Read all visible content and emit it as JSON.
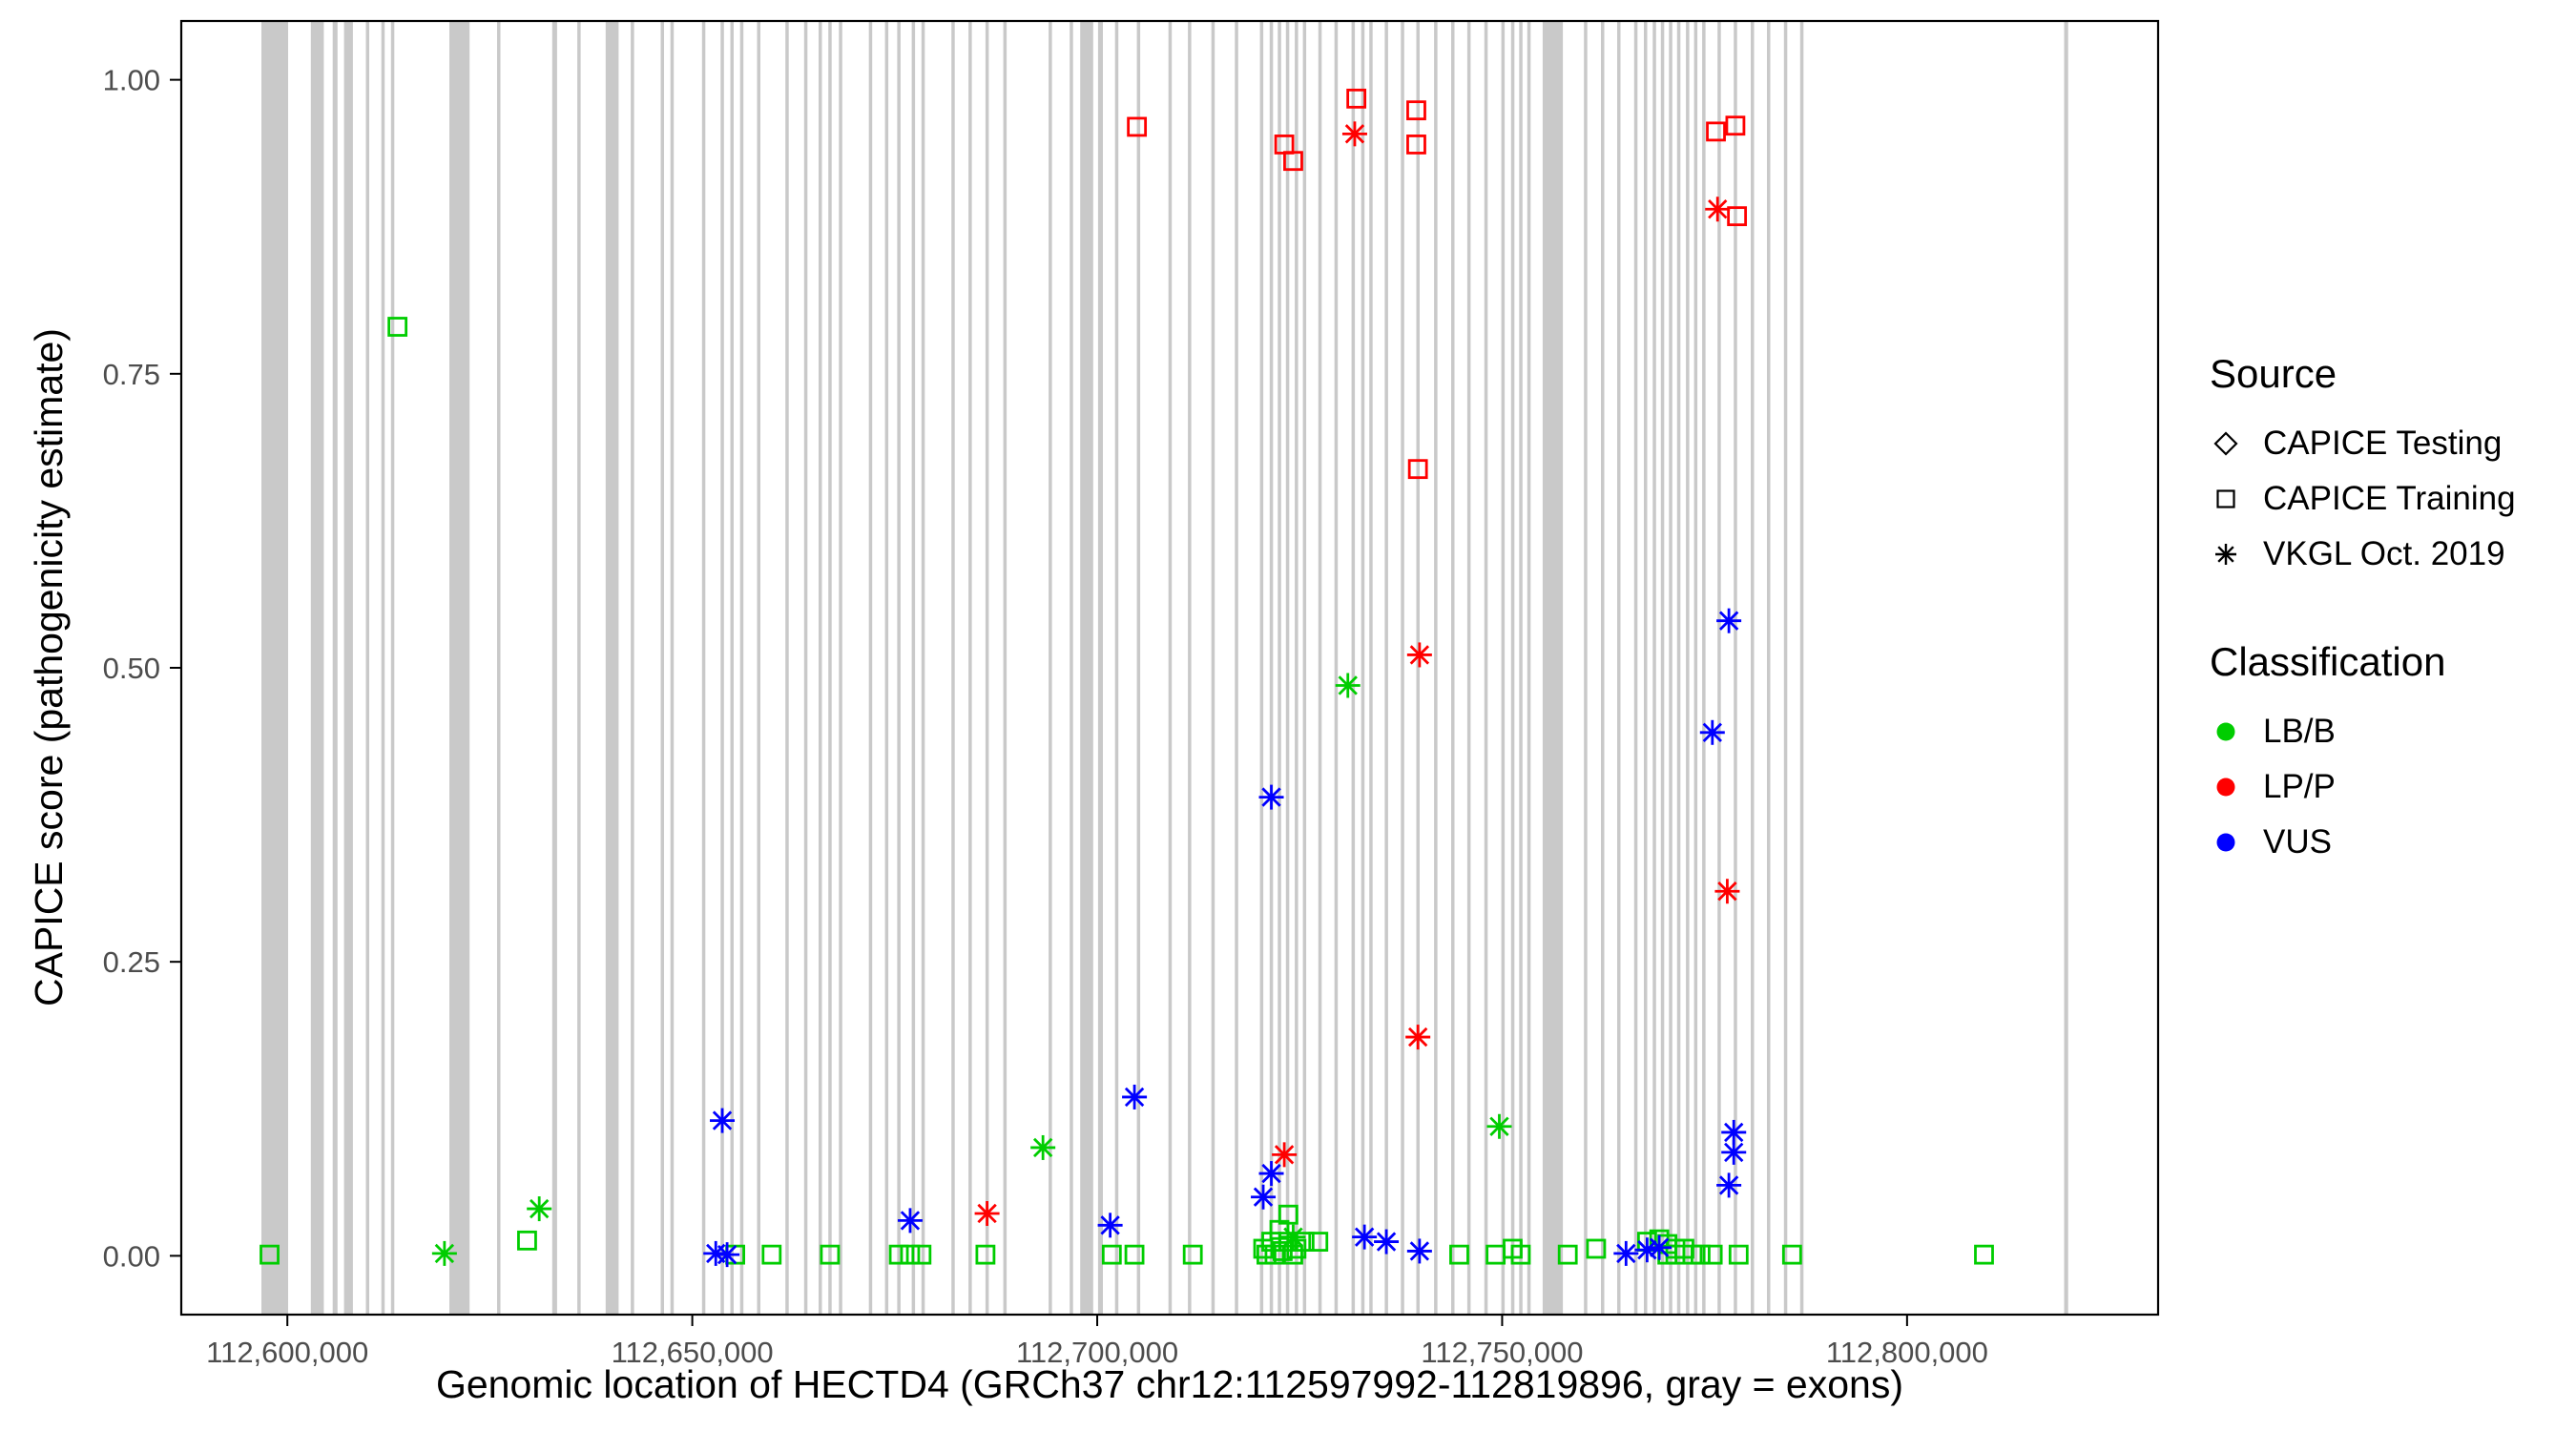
{
  "chart_data": {
    "type": "scatter",
    "title": "",
    "xlabel": "Genomic location of HECTD4 (GRCh37 chr12:112597992-112819896, gray = exons)",
    "ylabel": "CAPICE score (pathogenicity estimate)",
    "xlim": [
      112586900,
      112831000
    ],
    "ylim": [
      -0.05,
      1.05
    ],
    "grid": false,
    "legend_position": "right",
    "x_ticks": [
      {
        "value": 112600000,
        "label": "112,600,000"
      },
      {
        "value": 112650000,
        "label": "112,650,000"
      },
      {
        "value": 112700000,
        "label": "112,700,000"
      },
      {
        "value": 112750000,
        "label": "112,750,000"
      },
      {
        "value": 112800000,
        "label": "112,800,000"
      }
    ],
    "y_ticks": [
      {
        "value": 0.0,
        "label": "0.00"
      },
      {
        "value": 0.25,
        "label": "0.25"
      },
      {
        "value": 0.5,
        "label": "0.50"
      },
      {
        "value": 0.75,
        "label": "0.75"
      },
      {
        "value": 1.0,
        "label": "1.00"
      }
    ],
    "colors": {
      "exon": "#C9C9C9",
      "lbb": "#00CD00",
      "lpp": "#FF0000",
      "vus": "#0000FF",
      "border": "#000000"
    },
    "exons": [
      [
        112596800,
        112600100
      ],
      [
        112602900,
        112604500
      ],
      [
        112605600,
        112606200
      ],
      [
        112607000,
        112608100
      ],
      [
        112609700,
        112610100
      ],
      [
        112611600,
        112612000
      ],
      [
        112612800,
        112613200
      ],
      [
        112620000,
        112622500
      ],
      [
        112625900,
        112626300
      ],
      [
        112632700,
        112633300
      ],
      [
        112635800,
        112636200
      ],
      [
        112639300,
        112640900
      ],
      [
        112642400,
        112642800
      ],
      [
        112646100,
        112646500
      ],
      [
        112647300,
        112647700
      ],
      [
        112651200,
        112651600
      ],
      [
        112653500,
        112653900
      ],
      [
        112654700,
        112655100
      ],
      [
        112655900,
        112656300
      ],
      [
        112658000,
        112658400
      ],
      [
        112661500,
        112661900
      ],
      [
        112663800,
        112664200
      ],
      [
        112665600,
        112666000
      ],
      [
        112666800,
        112667200
      ],
      [
        112668100,
        112668500
      ],
      [
        112671800,
        112672200
      ],
      [
        112673800,
        112674200
      ],
      [
        112675300,
        112675700
      ],
      [
        112677100,
        112677500
      ],
      [
        112678300,
        112678700
      ],
      [
        112682000,
        112682400
      ],
      [
        112684100,
        112684500
      ],
      [
        112686200,
        112686600
      ],
      [
        112688400,
        112688800
      ],
      [
        112694000,
        112694400
      ],
      [
        112696600,
        112697000
      ],
      [
        112697900,
        112699500
      ],
      [
        112700100,
        112700700
      ],
      [
        112702200,
        112702600
      ],
      [
        112704900,
        112705300
      ],
      [
        112708800,
        112709200
      ],
      [
        112711200,
        112711600
      ],
      [
        112714100,
        112714500
      ],
      [
        112717000,
        112717400
      ],
      [
        112720100,
        112720500
      ],
      [
        112721300,
        112721700
      ],
      [
        112722300,
        112722700
      ],
      [
        112723300,
        112723700
      ],
      [
        112724400,
        112724800
      ],
      [
        112725400,
        112725800
      ],
      [
        112727300,
        112727700
      ],
      [
        112729300,
        112729700
      ],
      [
        112731400,
        112731800
      ],
      [
        112732600,
        112733000
      ],
      [
        112733600,
        112734000
      ],
      [
        112735500,
        112735900
      ],
      [
        112737500,
        112737900
      ],
      [
        112739400,
        112739800
      ],
      [
        112741600,
        112742000
      ],
      [
        112743700,
        112744100
      ],
      [
        112745700,
        112746100
      ],
      [
        112747800,
        112748200
      ],
      [
        112749900,
        112750300
      ],
      [
        112751100,
        112751500
      ],
      [
        112752100,
        112752500
      ],
      [
        112753100,
        112753500
      ],
      [
        112755000,
        112757500
      ],
      [
        112760100,
        112760500
      ],
      [
        112762200,
        112762600
      ],
      [
        112764200,
        112764600
      ],
      [
        112766300,
        112766700
      ],
      [
        112767500,
        112767900
      ],
      [
        112768600,
        112769000
      ],
      [
        112769600,
        112770000
      ],
      [
        112770600,
        112771000
      ],
      [
        112771600,
        112772000
      ],
      [
        112772700,
        112773100
      ],
      [
        112773700,
        112774100
      ],
      [
        112774700,
        112775100
      ],
      [
        112776600,
        112777000
      ],
      [
        112778600,
        112779000
      ],
      [
        112780700,
        112781100
      ],
      [
        112782700,
        112783100
      ],
      [
        112784800,
        112785200
      ],
      [
        112786800,
        112787200
      ],
      [
        112819400,
        112819896
      ]
    ],
    "series": [
      {
        "name": "CAPICE Training / LB/B",
        "source": "CAPICE Training",
        "classification": "LB/B",
        "shape": "square",
        "color": "#00CD00",
        "points": [
          [
            112597800,
            0.001
          ],
          [
            112613600,
            0.79
          ],
          [
            112629600,
            0.013
          ],
          [
            112655300,
            0.001
          ],
          [
            112659800,
            0.001
          ],
          [
            112667000,
            0.001
          ],
          [
            112675500,
            0.001
          ],
          [
            112676900,
            0.001
          ],
          [
            112678300,
            0.001
          ],
          [
            112686200,
            0.001
          ],
          [
            112701800,
            0.001
          ],
          [
            112704600,
            0.001
          ],
          [
            112711800,
            0.001
          ],
          [
            112720500,
            0.006
          ],
          [
            112720900,
            0.001
          ],
          [
            112721500,
            0.012
          ],
          [
            112721900,
            0.001
          ],
          [
            112722500,
            0.022
          ],
          [
            112722900,
            0.004
          ],
          [
            112723600,
            0.035
          ],
          [
            112723600,
            0.012
          ],
          [
            112724200,
            0.001
          ],
          [
            112724600,
            0.006
          ],
          [
            112725600,
            0.012
          ],
          [
            112727300,
            0.012
          ],
          [
            112744700,
            0.001
          ],
          [
            112749200,
            0.001
          ],
          [
            112751300,
            0.006
          ],
          [
            112752300,
            0.001
          ],
          [
            112758100,
            0.001
          ],
          [
            112761600,
            0.006
          ],
          [
            112767900,
            0.012
          ],
          [
            112769400,
            0.014
          ],
          [
            112770400,
            0.01
          ],
          [
            112770400,
            0.001
          ],
          [
            112771400,
            0.006
          ],
          [
            112771400,
            0.001
          ],
          [
            112772500,
            0.006
          ],
          [
            112773500,
            0.001
          ],
          [
            112774500,
            0.001
          ],
          [
            112776000,
            0.001
          ],
          [
            112779200,
            0.001
          ],
          [
            112785800,
            0.001
          ],
          [
            112809500,
            0.001
          ]
        ]
      },
      {
        "name": "CAPICE Training / LP/P",
        "source": "CAPICE Training",
        "classification": "LP/P",
        "shape": "square",
        "color": "#FF0000",
        "points": [
          [
            112704900,
            0.96
          ],
          [
            112723100,
            0.945
          ],
          [
            112724200,
            0.931
          ],
          [
            112732000,
            0.984
          ],
          [
            112739400,
            0.974
          ],
          [
            112739400,
            0.945
          ],
          [
            112739600,
            0.669
          ],
          [
            112776400,
            0.956
          ],
          [
            112778800,
            0.961
          ],
          [
            112779000,
            0.884
          ]
        ]
      },
      {
        "name": "CAPICE Testing",
        "source": "CAPICE Testing",
        "classification": "",
        "shape": "diamond",
        "color": "#000000",
        "points": []
      },
      {
        "name": "VKGL Oct. 2019 / LB/B",
        "source": "VKGL Oct. 2019",
        "classification": "LB/B",
        "shape": "asterisk",
        "color": "#00CD00",
        "points": [
          [
            112619400,
            0.002
          ],
          [
            112631100,
            0.04
          ],
          [
            112693300,
            0.092
          ],
          [
            112724200,
            0.016
          ],
          [
            112730950,
            0.485
          ],
          [
            112749650,
            0.11
          ]
        ]
      },
      {
        "name": "VKGL Oct. 2019 / LP/P",
        "source": "VKGL Oct. 2019",
        "classification": "LP/P",
        "shape": "asterisk",
        "color": "#FF0000",
        "points": [
          [
            112686400,
            0.036
          ],
          [
            112723100,
            0.086
          ],
          [
            112731800,
            0.954
          ],
          [
            112739600,
            0.186
          ],
          [
            112739800,
            0.511
          ],
          [
            112776600,
            0.89
          ],
          [
            112777800,
            0.31
          ]
        ]
      },
      {
        "name": "VKGL Oct. 2019 / VUS",
        "source": "VKGL Oct. 2019",
        "classification": "VUS",
        "shape": "asterisk",
        "color": "#0000FF",
        "points": [
          [
            112652900,
            0.002
          ],
          [
            112653700,
            0.115
          ],
          [
            112654300,
            0.001
          ],
          [
            112676900,
            0.03
          ],
          [
            112701600,
            0.026
          ],
          [
            112704600,
            0.135
          ],
          [
            112720500,
            0.05
          ],
          [
            112721500,
            0.39
          ],
          [
            112721500,
            0.07
          ],
          [
            112733000,
            0.016
          ],
          [
            112735700,
            0.012
          ],
          [
            112739800,
            0.004
          ],
          [
            112765300,
            0.002
          ],
          [
            112767900,
            0.005
          ],
          [
            112769400,
            0.007
          ],
          [
            112775960,
            0.445
          ],
          [
            112778000,
            0.54
          ],
          [
            112778000,
            0.06
          ],
          [
            112778600,
            0.105
          ],
          [
            112778600,
            0.088
          ]
        ]
      }
    ],
    "legend": {
      "source_title": "Source",
      "source_items": [
        {
          "label": "CAPICE Testing",
          "shape": "diamond"
        },
        {
          "label": "CAPICE Training",
          "shape": "square"
        },
        {
          "label": "VKGL Oct. 2019",
          "shape": "asterisk"
        }
      ],
      "classification_title": "Classification",
      "classification_items": [
        {
          "label": "LB/B",
          "color": "#00CD00"
        },
        {
          "label": "LP/P",
          "color": "#FF0000"
        },
        {
          "label": "VUS",
          "color": "#0000FF"
        }
      ]
    }
  }
}
